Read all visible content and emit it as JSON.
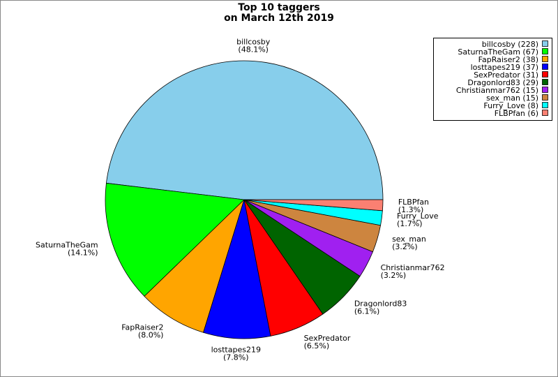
{
  "chart_data": {
    "type": "pie",
    "title": "Top 10 taggers",
    "subtitle": "on March 12th 2019",
    "categories": [
      "billcosby",
      "SaturnaTheGam",
      "FapRaiser2",
      "losttapes219",
      "SexPredator",
      "Dragonlord83",
      "Christianmar762",
      "sex_man",
      "Furry_Love",
      "FLBPfan"
    ],
    "values": [
      228,
      67,
      38,
      37,
      31,
      29,
      15,
      15,
      8,
      6
    ],
    "percent_labels": [
      "(48.1%)",
      "(14.1%)",
      "(8.0%)",
      "(7.8%)",
      "(6.5%)",
      "(6.1%)",
      "(3.2%)",
      "(3.2%)",
      "(1.7%)",
      "(1.3%)"
    ],
    "legend_labels": [
      "billcosby (228)",
      "SaturnaTheGam (67)",
      "FapRaiser2 (38)",
      "losttapes219 (37)",
      "SexPredator (31)",
      "Dragonlord83 (29)",
      "Christianmar762 (15)",
      "sex_man (15)",
      "Furry_Love (8)",
      "FLBPfan (6)"
    ],
    "colors": [
      "#87ceeb",
      "#00ff00",
      "#ffa500",
      "#0000ff",
      "#ff0000",
      "#006400",
      "#a020f0",
      "#cd853f",
      "#00ffff",
      "#fa8072"
    ],
    "legend": "top-right"
  }
}
